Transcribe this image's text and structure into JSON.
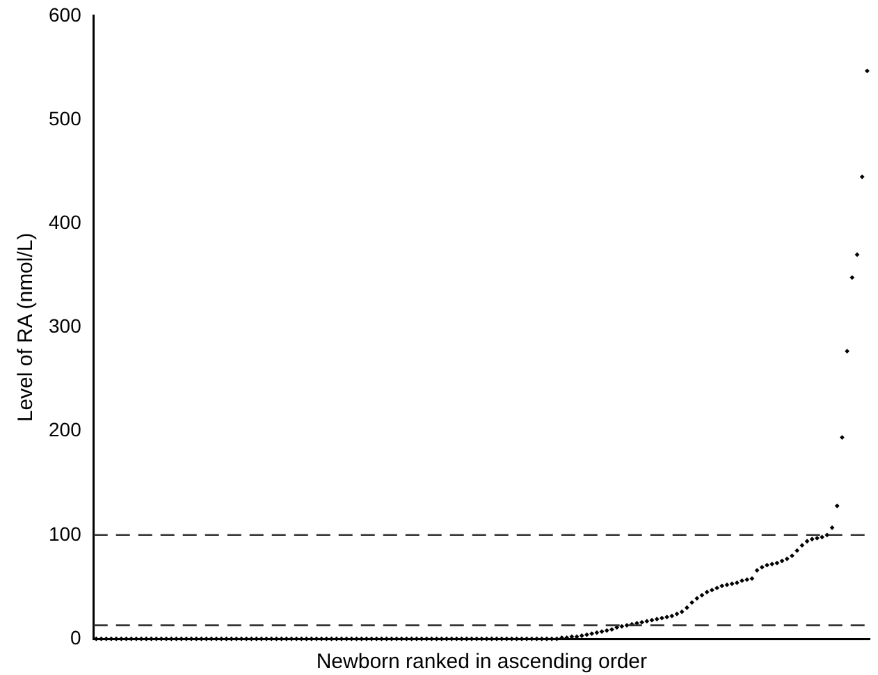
{
  "chart_data": {
    "type": "scatter",
    "xlabel": "Newborn ranked in ascending order",
    "ylabel": "Level of RA (nmol/L)",
    "categories": [
      null,
      null,
      null,
      null,
      null,
      null,
      null,
      null,
      null,
      null,
      null,
      null,
      null,
      null,
      null,
      null,
      null,
      null,
      null,
      null,
      null,
      null,
      null,
      null,
      null,
      null,
      null,
      null,
      null,
      null,
      null,
      null,
      null,
      null,
      null,
      null,
      null,
      null,
      null,
      null,
      null,
      null,
      null,
      null,
      null,
      null,
      null,
      null,
      null,
      null,
      null,
      null,
      null,
      null,
      null,
      null,
      null,
      null,
      null,
      null,
      null,
      null,
      null,
      null,
      null,
      null,
      null,
      null,
      null,
      null,
      null,
      null,
      null,
      null,
      null,
      null,
      null,
      null,
      null,
      null,
      null,
      null,
      null,
      null,
      null,
      null,
      null,
      null,
      null,
      null,
      null,
      null,
      null,
      null,
      null,
      null,
      null,
      null,
      null,
      null,
      null,
      null,
      null,
      null,
      null,
      null,
      null,
      null,
      null,
      null,
      null,
      null,
      null,
      null,
      null,
      null,
      null,
      null,
      null,
      null,
      null,
      null,
      null,
      null,
      null,
      null,
      null,
      null,
      null,
      null,
      null,
      null,
      null,
      null,
      null,
      null,
      null,
      null,
      null,
      null,
      null,
      null,
      null,
      null,
      null,
      null,
      null,
      null,
      null,
      null,
      null,
      null,
      null,
      null,
      null
    ],
    "values": [
      0,
      0,
      0,
      0,
      0,
      0,
      0,
      0,
      0,
      0,
      0,
      0,
      0,
      0,
      0,
      0,
      0,
      0,
      0,
      0,
      0,
      0,
      0,
      0,
      0,
      0,
      0,
      0,
      0,
      0,
      0,
      0,
      0,
      0,
      0,
      0,
      0,
      0,
      0,
      0,
      0,
      0,
      0,
      0,
      0,
      0,
      0,
      0,
      0,
      0,
      0,
      0,
      0,
      0,
      0,
      0,
      0,
      0,
      0,
      0,
      0,
      0,
      0,
      0,
      0,
      0,
      0,
      0,
      0,
      0,
      0,
      0,
      0,
      0,
      0,
      0,
      0,
      0,
      0,
      0,
      0,
      0,
      0,
      0,
      0,
      0,
      0,
      0,
      0,
      0,
      0,
      0,
      0,
      1,
      1,
      2,
      2,
      3,
      4,
      5,
      6,
      7,
      8,
      9,
      11,
      12,
      13,
      14,
      15,
      16,
      17,
      18,
      19,
      20,
      21,
      22,
      24,
      26,
      30,
      35,
      39,
      42,
      45,
      47,
      49,
      51,
      52,
      53,
      54,
      56,
      57,
      58,
      66,
      69,
      71,
      72,
      73,
      75,
      77,
      80,
      85,
      90,
      94,
      96,
      97,
      98,
      100,
      107,
      128,
      194,
      277,
      348,
      370,
      445,
      547
    ],
    "color": "#000000",
    "marker": "diamond",
    "ylim": [
      0,
      600
    ],
    "yticks": [
      0,
      100,
      200,
      300,
      400,
      500,
      600
    ],
    "tick_labels": "y",
    "grid": false,
    "legend": false,
    "ref_lines": [
      {
        "axis": "y",
        "value": 100,
        "line_style": "dashed",
        "color": "#333333"
      },
      {
        "axis": "y",
        "value": 13,
        "line_style": "dashed",
        "color": "#333333"
      }
    ]
  }
}
